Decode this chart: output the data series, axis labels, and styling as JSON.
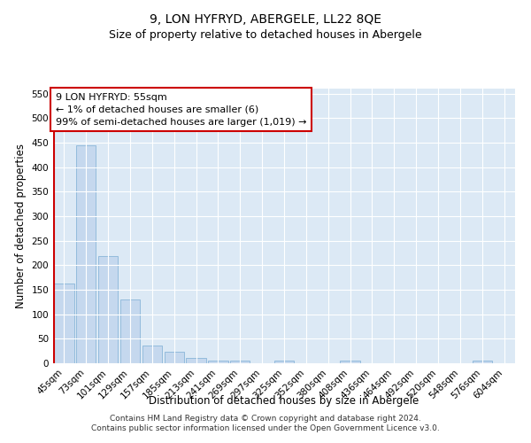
{
  "title": "9, LON HYFRYD, ABERGELE, LL22 8QE",
  "subtitle": "Size of property relative to detached houses in Abergele",
  "xlabel": "Distribution of detached houses by size in Abergele",
  "ylabel": "Number of detached properties",
  "categories": [
    "45sqm",
    "73sqm",
    "101sqm",
    "129sqm",
    "157sqm",
    "185sqm",
    "213sqm",
    "241sqm",
    "269sqm",
    "297sqm",
    "325sqm",
    "352sqm",
    "380sqm",
    "408sqm",
    "436sqm",
    "464sqm",
    "492sqm",
    "520sqm",
    "548sqm",
    "576sqm",
    "604sqm"
  ],
  "values": [
    163,
    445,
    218,
    130,
    37,
    24,
    11,
    6,
    6,
    0,
    5,
    0,
    0,
    6,
    0,
    0,
    0,
    0,
    0,
    5,
    0
  ],
  "bar_color": "#c5d8ee",
  "bar_edge_color": "#7aadd4",
  "highlight_line_color": "#cc0000",
  "annotation_text": "9 LON HYFRYD: 55sqm\n← 1% of detached houses are smaller (6)\n99% of semi-detached houses are larger (1,019) →",
  "annotation_box_color": "#cc0000",
  "ylim": [
    0,
    560
  ],
  "yticks": [
    0,
    50,
    100,
    150,
    200,
    250,
    300,
    350,
    400,
    450,
    500,
    550
  ],
  "footer_text": "Contains HM Land Registry data © Crown copyright and database right 2024.\nContains public sector information licensed under the Open Government Licence v3.0.",
  "background_color": "#dce9f5",
  "grid_color": "#ffffff",
  "title_fontsize": 10,
  "subtitle_fontsize": 9,
  "axis_label_fontsize": 8.5,
  "tick_fontsize": 7.5,
  "annotation_fontsize": 8,
  "footer_fontsize": 6.5
}
